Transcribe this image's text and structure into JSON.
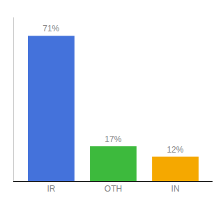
{
  "chart_data": {
    "type": "bar",
    "categories": [
      "IR",
      "OTH",
      "IN"
    ],
    "values": [
      71,
      17,
      12
    ],
    "value_labels": [
      "71%",
      "17%",
      "12%"
    ],
    "colors": [
      "#4472db",
      "#3dba3d",
      "#f5a800"
    ],
    "ylim": [
      0,
      80
    ],
    "grid": false,
    "data_labels": true,
    "tick_labels": "x"
  }
}
